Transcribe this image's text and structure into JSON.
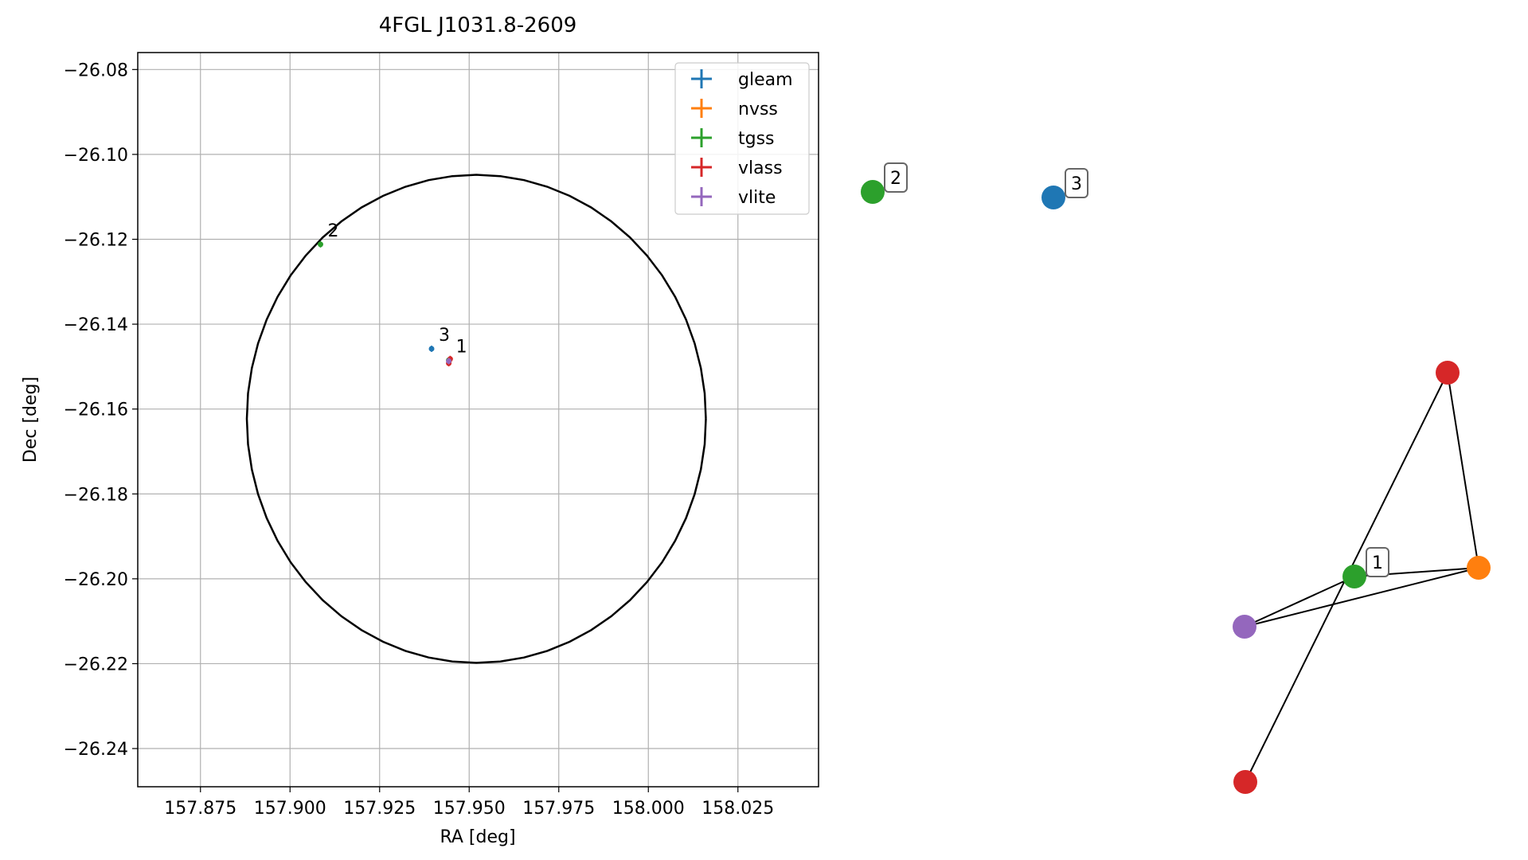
{
  "chart_data": [
    {
      "type": "scatter",
      "title": "4FGL J1031.8-2609",
      "xlabel": "RA [deg]",
      "ylabel": "Dec [deg]",
      "xlim": [
        157.8575,
        158.0475
      ],
      "ylim": [
        -26.249,
        -26.076
      ],
      "x_ticks": [
        157.875,
        157.9,
        157.925,
        157.95,
        157.975,
        158.0,
        158.025
      ],
      "x_tick_labels": [
        "157.875",
        "157.900",
        "157.925",
        "157.950",
        "157.975",
        "158.000",
        "158.025"
      ],
      "y_ticks": [
        -26.08,
        -26.1,
        -26.12,
        -26.14,
        -26.16,
        -26.18,
        -26.2,
        -26.22,
        -26.24
      ],
      "y_tick_labels": [
        "−26.08",
        "−26.10",
        "−26.12",
        "−26.14",
        "−26.16",
        "−26.18",
        "−26.20",
        "−26.22",
        "−26.24"
      ],
      "grid": true,
      "legend_position": "upper-right",
      "circle": {
        "center": [
          157.952,
          -26.1623
        ],
        "radius_deg": 0.0575
      },
      "series": [
        {
          "name": "gleam",
          "color": "#1f77b4",
          "points": [
            {
              "x": 157.9395,
              "y": -26.1458
            }
          ]
        },
        {
          "name": "nvss",
          "color": "#ff7f0e",
          "points": [
            {
              "x": 157.9445,
              "y": -26.1485
            }
          ]
        },
        {
          "name": "tgss",
          "color": "#2ca02c",
          "points": [
            {
              "x": 157.9085,
              "y": -26.1212
            },
            {
              "x": 157.9443,
              "y": -26.1485
            }
          ]
        },
        {
          "name": "vlass",
          "color": "#d62728",
          "points": [
            {
              "x": 157.9447,
              "y": -26.1482
            },
            {
              "x": 157.9443,
              "y": -26.1492
            }
          ]
        },
        {
          "name": "vlite",
          "color": "#9467bd",
          "points": [
            {
              "x": 157.9443,
              "y": -26.1487
            }
          ]
        }
      ],
      "annotations": [
        {
          "text": "1",
          "x": 157.9443,
          "y": -26.1485
        },
        {
          "text": "2",
          "x": 157.9085,
          "y": -26.1212
        },
        {
          "text": "3",
          "x": 157.9395,
          "y": -26.1458
        }
      ]
    },
    {
      "type": "network",
      "nodes": [
        {
          "id": "n2",
          "color": "#2ca02c",
          "label": "2",
          "x": 0.0,
          "y": 0.0
        },
        {
          "id": "n3",
          "color": "#1f77b4",
          "label": "3",
          "x": 0.227,
          "y": -0.007
        },
        {
          "id": "nr1",
          "color": "#d62728",
          "label": "",
          "x": 0.722,
          "y": -0.227
        },
        {
          "id": "n1",
          "color": "#2ca02c",
          "label": "1",
          "x": 0.605,
          "y": -0.483
        },
        {
          "id": "no",
          "color": "#ff7f0e",
          "label": "",
          "x": 0.761,
          "y": -0.472
        },
        {
          "id": "nv",
          "color": "#9467bd",
          "label": "",
          "x": 0.467,
          "y": -0.546
        },
        {
          "id": "nr2",
          "color": "#d62728",
          "label": "",
          "x": 0.468,
          "y": -0.741
        }
      ],
      "edges": [
        [
          "nr1",
          "no"
        ],
        [
          "nr1",
          "nr2"
        ],
        [
          "n1",
          "no"
        ],
        [
          "n1",
          "nv"
        ],
        [
          "nv",
          "no"
        ]
      ]
    }
  ]
}
